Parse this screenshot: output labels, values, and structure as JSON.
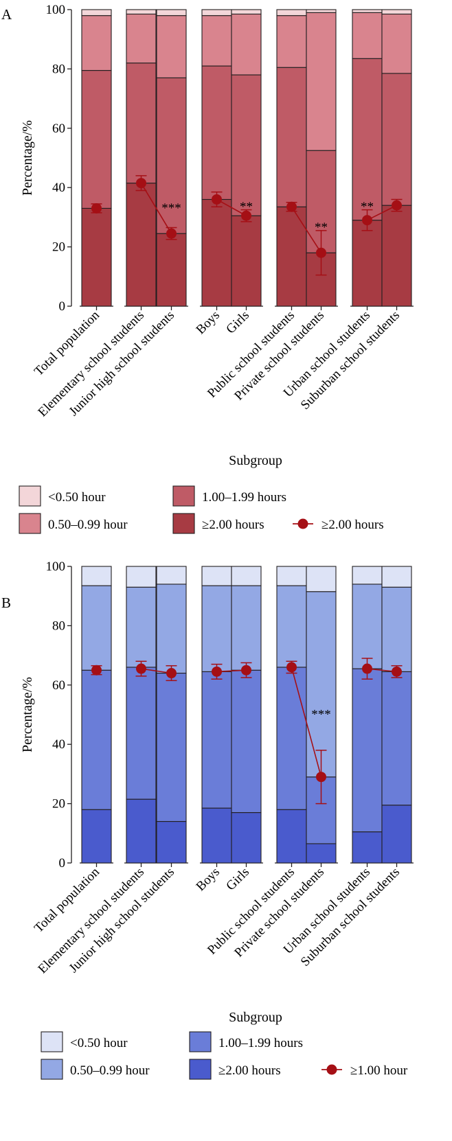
{
  "chart_data": [
    {
      "panel": "A",
      "type": "bar",
      "stacked": true,
      "xlabel": "Subgroup",
      "ylabel": "Percentage/%",
      "ylim": [
        0,
        100
      ],
      "yticks": [
        0,
        20,
        40,
        60,
        80,
        100
      ],
      "categories": [
        "Total population",
        "Elementary school students",
        "Junior high school students",
        "Boys",
        "Girls",
        "Public school students",
        "Private school students",
        "Urban school students",
        "Suburban school students"
      ],
      "groups": [
        [
          0
        ],
        [
          1,
          2
        ],
        [
          3,
          4
        ],
        [
          5,
          6
        ],
        [
          7,
          8
        ]
      ],
      "series": [
        {
          "name": "≥2.00 hours",
          "color": "#a73b43",
          "values": [
            33.0,
            41.5,
            24.5,
            36.0,
            30.5,
            33.5,
            18.0,
            29.0,
            34.0
          ]
        },
        {
          "name": "1.00–1.99 hours",
          "color": "#bf5b66",
          "values": [
            46.5,
            40.5,
            52.5,
            45.0,
            47.5,
            47.0,
            34.5,
            54.5,
            44.5
          ]
        },
        {
          "name": "0.50–0.99 hour",
          "color": "#d9848e",
          "values": [
            18.5,
            16.5,
            21.0,
            17.0,
            20.5,
            17.5,
            46.5,
            15.5,
            20.0
          ]
        },
        {
          "name": "<0.50 hour",
          "color": "#f3d6d9",
          "values": [
            2.0,
            1.5,
            2.0,
            2.0,
            1.5,
            2.0,
            1.0,
            1.0,
            1.5
          ]
        }
      ],
      "line": {
        "name": "≥2.00 hours",
        "color": "#a50f15",
        "values": [
          33.0,
          41.5,
          24.5,
          36.0,
          30.5,
          33.5,
          18.0,
          29.0,
          34.0
        ],
        "err": [
          1.5,
          2.5,
          2.0,
          2.5,
          2.0,
          1.5,
          7.5,
          3.5,
          2.0
        ]
      },
      "annotations": [
        {
          "text": "***",
          "category": 2,
          "y": 34.5
        },
        {
          "text": "**",
          "category": 4,
          "y": 35.0
        },
        {
          "text": "**",
          "category": 6,
          "y": 28.0
        },
        {
          "text": "**",
          "category": 7,
          "y": 35.0
        }
      ],
      "legend": {
        "placement": "bottom",
        "items": [
          {
            "label": "<0.50 hour",
            "kind": "box",
            "color": "#f3d6d9"
          },
          {
            "label": "1.00–1.99 hours",
            "kind": "box",
            "color": "#bf5b66"
          },
          {
            "label": "0.50–0.99 hour",
            "kind": "box",
            "color": "#d9848e"
          },
          {
            "label": "≥2.00 hours",
            "kind": "box",
            "color": "#a73b43"
          },
          {
            "label": "≥2.00 hours",
            "kind": "line",
            "color": "#a50f15"
          }
        ]
      }
    },
    {
      "panel": "B",
      "type": "bar",
      "stacked": true,
      "xlabel": "Subgroup",
      "ylabel": "Percentage/%",
      "ylim": [
        0,
        100
      ],
      "yticks": [
        0,
        20,
        40,
        60,
        80,
        100
      ],
      "categories": [
        "Total population",
        "Elementary school students",
        "Junior high school students",
        "Boys",
        "Girls",
        "Public school students",
        "Private school students",
        "Urban school students",
        "Suburban school students"
      ],
      "groups": [
        [
          0
        ],
        [
          1,
          2
        ],
        [
          3,
          4
        ],
        [
          5,
          6
        ],
        [
          7,
          8
        ]
      ],
      "series": [
        {
          "name": "≥2.00 hours",
          "color": "#4a5bcd",
          "values": [
            18.0,
            21.5,
            14.0,
            18.5,
            17.0,
            18.0,
            6.5,
            10.5,
            19.5
          ]
        },
        {
          "name": "1.00–1.99 hours",
          "color": "#6a7dd8",
          "values": [
            47.0,
            44.5,
            50.0,
            46.0,
            48.0,
            48.0,
            22.5,
            55.0,
            45.0
          ]
        },
        {
          "name": "0.50–0.99 hour",
          "color": "#93a8e4",
          "values": [
            28.5,
            27.0,
            30.0,
            29.0,
            28.5,
            27.5,
            62.5,
            28.5,
            28.5
          ]
        },
        {
          "name": "<0.50 hour",
          "color": "#dde3f6",
          "values": [
            6.5,
            7.0,
            6.0,
            6.5,
            6.5,
            6.5,
            8.5,
            6.0,
            7.0
          ]
        }
      ],
      "line": {
        "name": "≥1.00 hour",
        "color": "#a50f15",
        "values": [
          65.0,
          65.5,
          64.0,
          64.5,
          65.0,
          66.0,
          29.0,
          65.5,
          64.5
        ],
        "err": [
          1.5,
          2.5,
          2.5,
          2.5,
          2.5,
          2.0,
          9.0,
          3.5,
          2.0
        ]
      },
      "annotations": [
        {
          "text": "***",
          "category": 6,
          "y": 51.5
        }
      ],
      "legend": {
        "placement": "bottom",
        "items": [
          {
            "label": "<0.50 hour",
            "kind": "box",
            "color": "#dde3f6"
          },
          {
            "label": "1.00–1.99 hours",
            "kind": "box",
            "color": "#6a7dd8"
          },
          {
            "label": "0.50–0.99 hour",
            "kind": "box",
            "color": "#93a8e4"
          },
          {
            "label": "≥2.00 hours",
            "kind": "box",
            "color": "#4a5bcd"
          },
          {
            "label": "≥1.00 hour",
            "kind": "line",
            "color": "#a50f15"
          }
        ]
      }
    }
  ]
}
